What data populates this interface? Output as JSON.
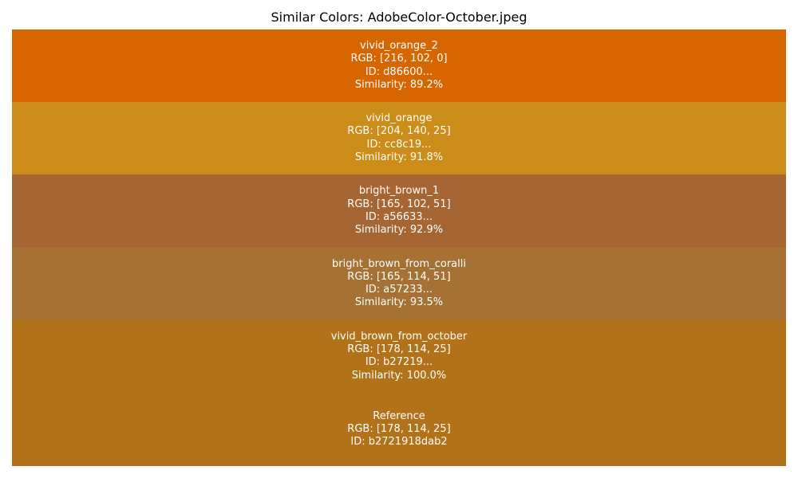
{
  "chart_data": {
    "type": "table",
    "title": "Similar Colors: AdobeColor-October.jpeg",
    "rows": [
      {
        "name": "vivid_orange_2",
        "rgb_label": "RGB: [216, 102, 0]",
        "id_label": "ID: d86600...",
        "similarity_label": "Similarity: 89.2%",
        "rgb": [
          216,
          102,
          0
        ],
        "similarity": 89.2,
        "color": "#d86600"
      },
      {
        "name": "vivid_orange",
        "rgb_label": "RGB: [204, 140, 25]",
        "id_label": "ID: cc8c19...",
        "similarity_label": "Similarity: 91.8%",
        "rgb": [
          204,
          140,
          25
        ],
        "similarity": 91.8,
        "color": "#cc8c19"
      },
      {
        "name": "bright_brown_1",
        "rgb_label": "RGB: [165, 102, 51]",
        "id_label": "ID: a56633...",
        "similarity_label": "Similarity: 92.9%",
        "rgb": [
          165,
          102,
          51
        ],
        "similarity": 92.9,
        "color": "#a56633"
      },
      {
        "name": "bright_brown_from_coralli",
        "rgb_label": "RGB: [165, 114, 51]",
        "id_label": "ID: a57233...",
        "similarity_label": "Similarity: 93.5%",
        "rgb": [
          165,
          114,
          51
        ],
        "similarity": 93.5,
        "color": "#a57233"
      },
      {
        "name": "vivid_brown_from_october",
        "rgb_label": "RGB: [178, 114, 25]",
        "id_label": "ID: b27219...",
        "similarity_label": "Similarity: 100.0%",
        "rgb": [
          178,
          114,
          25
        ],
        "similarity": 100.0,
        "color": "#b27219"
      }
    ],
    "reference": {
      "name": "Reference",
      "rgb_label": "RGB: [178, 114, 25]",
      "id_label": "ID: b2721918dab2",
      "rgb": [
        178,
        114,
        25
      ],
      "color": "#b27219"
    }
  }
}
